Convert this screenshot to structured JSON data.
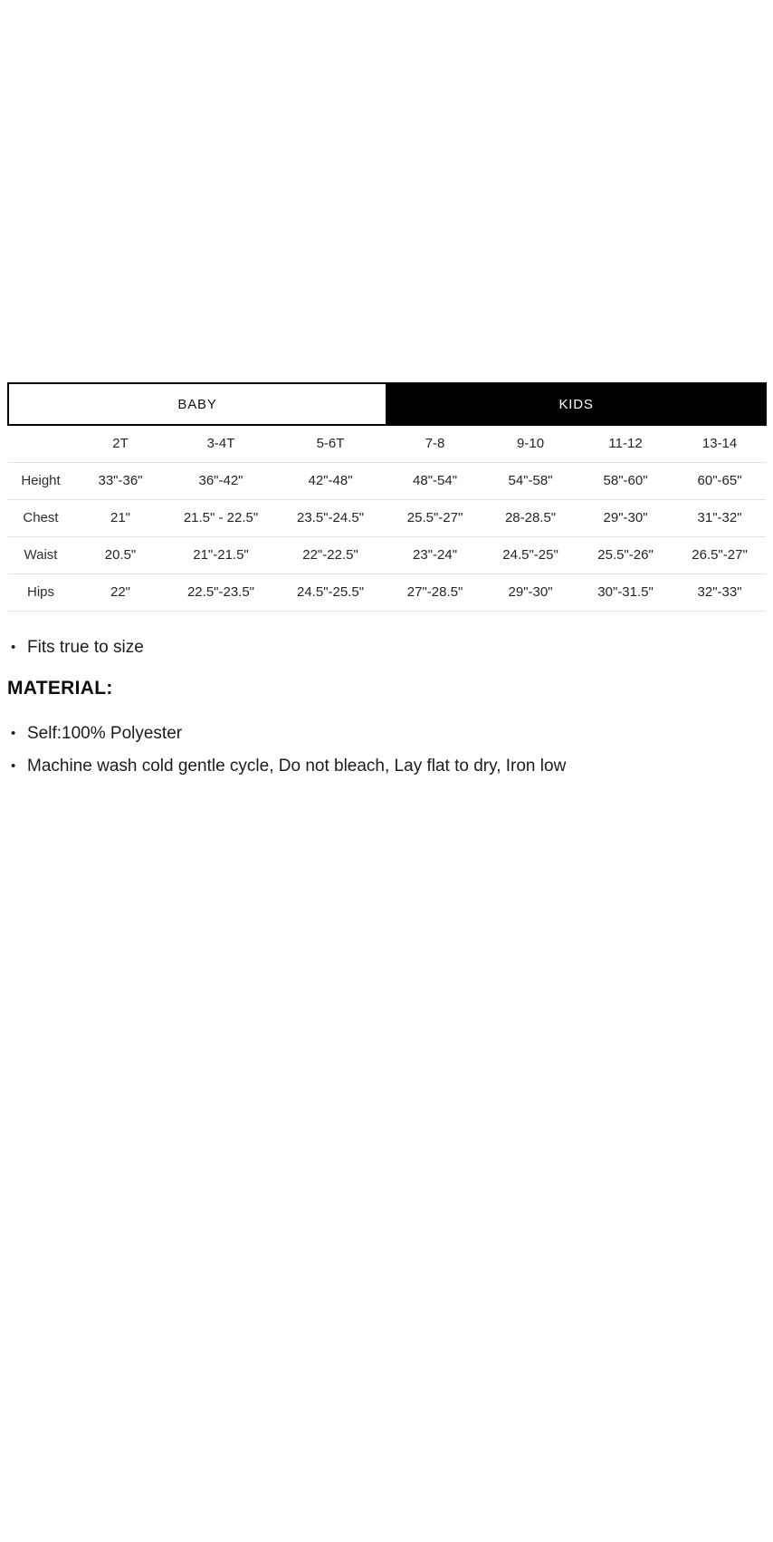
{
  "size_chart": {
    "groups": {
      "baby": "BABY",
      "kids": "KIDS"
    },
    "sizes": [
      "2T",
      "3-4T",
      "5-6T",
      "7-8",
      "9-10",
      "11-12",
      "13-14"
    ],
    "rows": [
      {
        "label": "Height",
        "values": [
          "33\"-36\"",
          "36\"-42\"",
          "42\"-48\"",
          "48\"-54\"",
          "54\"-58\"",
          "58\"-60\"",
          "60\"-65\""
        ]
      },
      {
        "label": "Chest",
        "values": [
          "21\"",
          "21.5\" - 22.5\"",
          "23.5\"-24.5\"",
          "25.5\"-27\"",
          "28-28.5\"",
          "29\"-30\"",
          "31\"-32\""
        ]
      },
      {
        "label": "Waist",
        "values": [
          "20.5\"",
          "21\"-21.5\"",
          "22\"-22.5\"",
          "23\"-24\"",
          "24.5\"-25\"",
          "25.5\"-26\"",
          "26.5\"-27\""
        ]
      },
      {
        "label": "Hips",
        "values": [
          "22\"",
          "22.5\"-23.5\"",
          "24.5\"-25.5\"",
          "27\"-28.5\"",
          "29\"-30\"",
          "30\"-31.5\"",
          "32\"-33\""
        ]
      }
    ]
  },
  "notes": {
    "fit": "Fits true to size",
    "material_heading": "MATERIAL:",
    "material_items": [
      "Self:100% Polyester",
      "Machine wash cold gentle cycle, Do not bleach, Lay flat to dry, Iron low"
    ]
  },
  "colors": {
    "kids_header_bg": "#000000",
    "baby_header_border": "#000000",
    "row_divider": "#e3e3e3",
    "text": "#1e1e1e"
  }
}
